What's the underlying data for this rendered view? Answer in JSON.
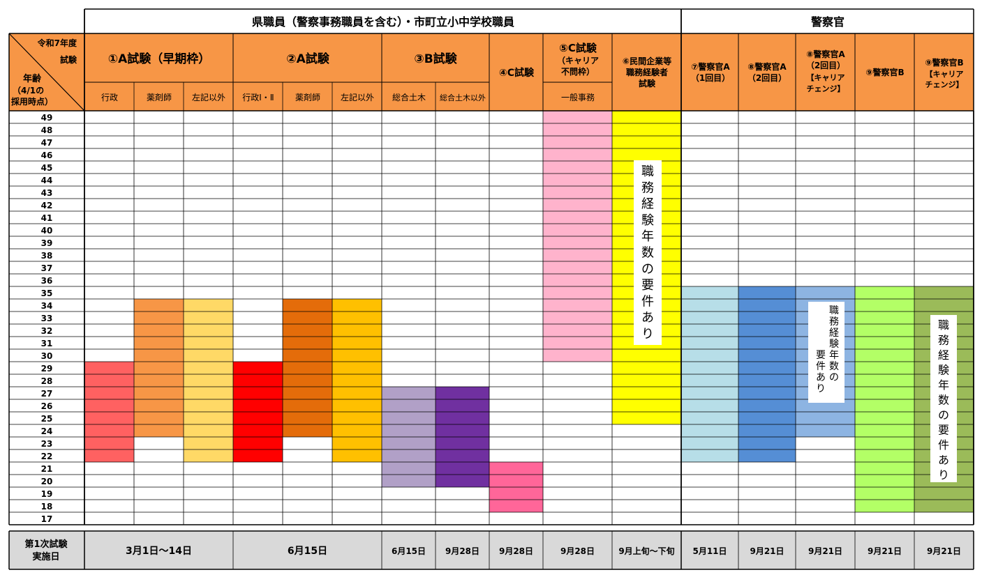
{
  "groups": {
    "prefecture": "県職員（警察事務職員を含む）・市町立小中学校職員",
    "police": "警察官"
  },
  "corner": {
    "year": "令和7年度",
    "exam": "試験",
    "age": "年齢",
    "basis_1": "（4/1の",
    "basis_2": "採用時点）"
  },
  "exams": {
    "a_early": "①A試験（早期枠）",
    "a": "②A試験",
    "b": "③B試験",
    "c": "④C試験",
    "c_career_1": "⑤C試験",
    "c_career_2": "（キャリア",
    "c_career_3": "不問枠）",
    "private_1": "⑥民間企業等",
    "private_2": "職務経験者",
    "private_3": "試験",
    "p7_1": "⑦警察官A",
    "p7_2": "（1回目）",
    "p8_1": "⑧警察官A",
    "p8_2": "（2回目）",
    "p8a_1": "⑧警察官A",
    "p8a_2": "（2回目）",
    "p8a_3": "【キャリア",
    "p8a_4": "チェンジ】",
    "p9": "⑨警察官B",
    "p9a_1": "⑨警察官B",
    "p9a_2": "【キャリア",
    "p9a_3": "チェンジ】"
  },
  "sub_columns": [
    "行政",
    "薬剤師",
    "左記以外",
    "行政Ⅰ・Ⅱ",
    "薬剤師",
    "左記以外",
    "総合土木",
    "総合土木以外",
    "一般事務"
  ],
  "ages": [
    49,
    48,
    47,
    46,
    45,
    44,
    43,
    42,
    41,
    40,
    39,
    38,
    37,
    36,
    35,
    34,
    33,
    32,
    31,
    30,
    29,
    28,
    27,
    26,
    25,
    24,
    23,
    22,
    21,
    20,
    19,
    18,
    17
  ],
  "eligibility": [
    {
      "column": "行政",
      "min_age": 22,
      "max_age": 29,
      "color": "#FF6161"
    },
    {
      "column": "薬剤師",
      "min_age": 24,
      "max_age": 34,
      "color": "#F79646"
    },
    {
      "column": "左記以外",
      "min_age": 22,
      "max_age": 34,
      "color": "#FFD966"
    },
    {
      "column": "行政Ⅰ・Ⅱ",
      "min_age": 22,
      "max_age": 29,
      "color": "#FF0000"
    },
    {
      "column": "薬剤師",
      "min_age": 24,
      "max_age": 34,
      "color": "#E46C0A"
    },
    {
      "column": "左記以外",
      "min_age": 22,
      "max_age": 34,
      "color": "#FFC000"
    },
    {
      "column": "総合土木",
      "min_age": 20,
      "max_age": 27,
      "color": "#B1A0C7"
    },
    {
      "column": "総合土木以外",
      "min_age": 20,
      "max_age": 27,
      "color": "#7030A0"
    },
    {
      "column": "④C試験",
      "min_age": 18,
      "max_age": 21,
      "color": "#FF6699"
    },
    {
      "column": "一般事務",
      "min_age": 30,
      "max_age": 49,
      "color": "#FFB3CC"
    },
    {
      "column": "⑥民間企業等職務経験者試験",
      "min_age": 25,
      "max_age": 49,
      "color": "#FFFF00"
    },
    {
      "column": "⑦警察官A（1回目）",
      "min_age": 22,
      "max_age": 35,
      "color": "#B7DEE8"
    },
    {
      "column": "⑧警察官A（2回目）",
      "min_age": 22,
      "max_age": 35,
      "color": "#558ED5"
    },
    {
      "column": "⑧警察官A【キャリアチェンジ】",
      "min_age": 24,
      "max_age": 35,
      "color": "#8DB4E2"
    },
    {
      "column": "⑨警察官B",
      "min_age": 18,
      "max_age": 35,
      "color": "#B3FF66"
    },
    {
      "column": "⑨警察官B【キャリアチェンジ】",
      "min_age": 18,
      "max_age": 35,
      "color": "#9BBB59"
    }
  ],
  "notes": {
    "experience_required": "職務経験年数の要件あり"
  },
  "footer": {
    "label_1": "第1次試験",
    "label_2": "実施日",
    "dates": [
      "3月1日～14日",
      "6月15日",
      "6月15日",
      "9月28日",
      "9月28日",
      "9月28日",
      "9月上旬～下旬",
      "5月11日",
      "9月21日",
      "9月21日",
      "9月21日",
      "9月21日"
    ]
  },
  "colors": {
    "header": "#F79646",
    "footer": "#D9D9D9",
    "border": "#000000"
  }
}
